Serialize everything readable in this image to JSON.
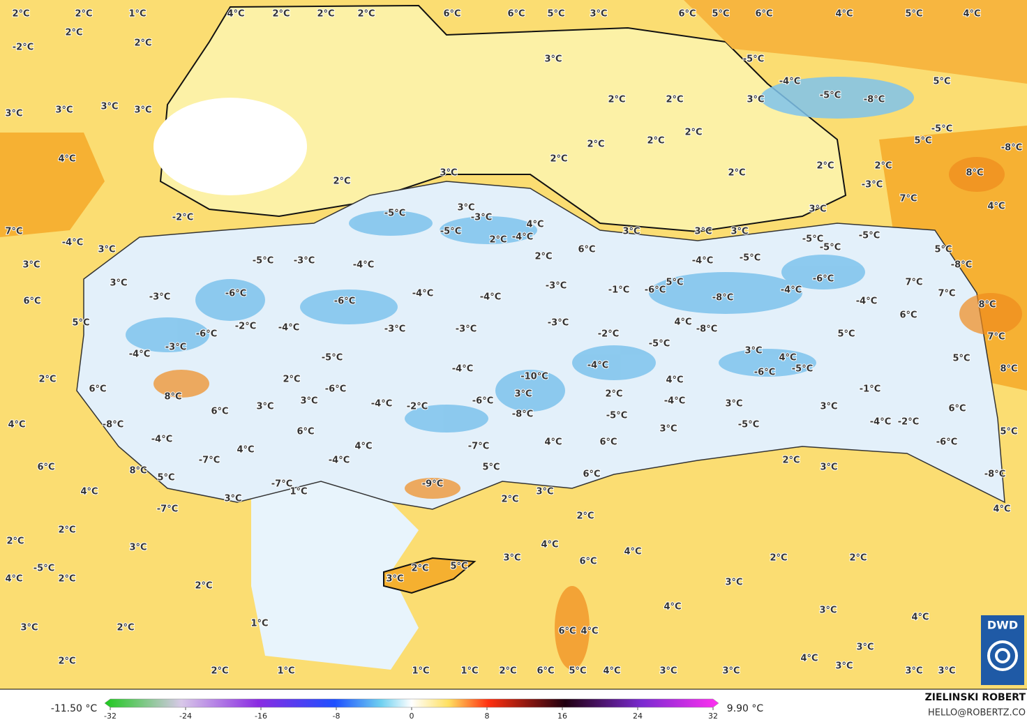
{
  "map": {
    "temperature_labels": [
      "2°C",
      "2°C",
      "1°C",
      "4°C",
      "2°C",
      "2°C",
      "2°C",
      "6°C",
      "6°C",
      "5°C",
      "3°C",
      "6°C",
      "5°C",
      "6°C",
      "4°C",
      "5°C",
      "4°C",
      "2°C",
      "-2°C",
      "2°C",
      "3°C",
      "-5°C",
      "5°C",
      "-4°C",
      "3°C",
      "-5°C",
      "-8°C",
      "2°C",
      "2°C",
      "3°C",
      "3°C",
      "3°C",
      "3°C",
      "2°C",
      "2°C",
      "2°C",
      "-5°C",
      "5°C",
      "-8°C",
      "4°C",
      "2°C",
      "2°C",
      "2°C",
      "2°C",
      "3°C",
      "8°C",
      "2°C",
      "-3°C",
      "7°C",
      "3°C",
      "4°C",
      "-2°C",
      "-5°C",
      "3°C",
      "-3°C",
      "4°C",
      "-5°C",
      "-4°C",
      "2°C",
      "3°C",
      "3°C",
      "3°C",
      "7°C",
      "-4°C",
      "3°C",
      "6°C",
      "-5°C",
      "-5°C",
      "5°C",
      "-5°C",
      "3°C",
      "-5°C",
      "-3°C",
      "-4°C",
      "2°C",
      "-4°C",
      "-5°C",
      "-8°C",
      "6°C",
      "3°C",
      "-3°C",
      "-1°C",
      "-6°C",
      "5°C",
      "-6°C",
      "7°C",
      "-4°C",
      "-3°C",
      "-6°C",
      "-4°C",
      "-4°C",
      "-8°C",
      "-4°C",
      "7°C",
      "8°C",
      "-6°C",
      "5°C",
      "-2°C",
      "-4°C",
      "-3°C",
      "-3°C",
      "-3°C",
      "-2°C",
      "4°C",
      "-8°C",
      "6°C",
      "5°C",
      "7°C",
      "-6°C",
      "-3°C",
      "-4°C",
      "-5°C",
      "-5°C",
      "3°C",
      "4°C",
      "-5°C",
      "-6°C",
      "5°C",
      "8°C",
      "-4°C",
      "-4°C",
      "-10°C",
      "2°C",
      "2°C",
      "-6°C",
      "4°C",
      "-1°C",
      "6°C",
      "8°C",
      "2°C",
      "3°C",
      "-6°C",
      "-4°C",
      "-2°C",
      "3°C",
      "3°C",
      "-4°C",
      "3°C",
      "3°C",
      "6°C",
      "4°C",
      "6°C",
      "-8°C",
      "-5°C",
      "-5°C",
      "-4°C",
      "-2°C",
      "-8°C",
      "6°C",
      "3°C",
      "5°C",
      "4°C",
      "4°C",
      "-4°C",
      "4°C",
      "6°C",
      "-7°C",
      "-6°C",
      "2°C",
      "3°C",
      "-4°C",
      "-7°C",
      "5°C",
      "6°C",
      "8°C",
      "5°C",
      "6°C",
      "-9°C",
      "3°C",
      "-7°C",
      "1°C",
      "4°C",
      "-8°C",
      "3°C",
      "2°C",
      "-7°C",
      "4°C",
      "2°C",
      "2°C",
      "3°C",
      "2°C",
      "4°C",
      "4°C",
      "-5°C",
      "4°C",
      "2°C",
      "3°C",
      "2°C",
      "2°C",
      "6°C",
      "5°C",
      "2°C",
      "3°C",
      "3°C",
      "2°C",
      "4°C",
      "3°C",
      "1°C",
      "3°C",
      "2°C",
      "4°C",
      "3°C",
      "6°C",
      "4°C",
      "4°C",
      "2°C",
      "3°C",
      "2°C",
      "1°C",
      "1°C",
      "1°C",
      "2°C",
      "6°C",
      "5°C",
      "4°C",
      "3°C",
      "3°C",
      "3°C",
      "3°C"
    ]
  },
  "legend": {
    "min_label": "-11.50 °C",
    "max_label": "9.90 °C",
    "range": [
      -32,
      32
    ],
    "ticks": [
      -32,
      -24,
      -16,
      -8,
      0,
      8,
      16,
      24,
      32
    ]
  },
  "credits": {
    "author": "ZIELINSKI ROBERT",
    "contact": "HELLO@ROBERTZ.CO",
    "logo": "DWD"
  }
}
